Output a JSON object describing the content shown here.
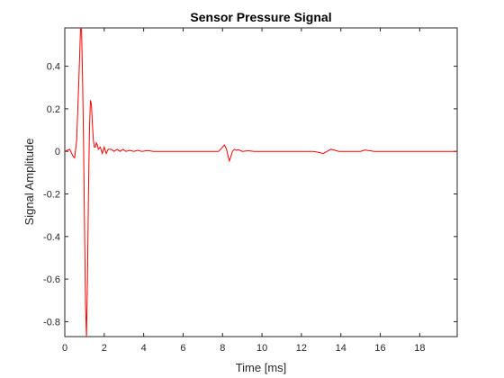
{
  "chart_data": {
    "type": "line",
    "title": "Sensor Pressure Signal",
    "xlabel": "Time [ms]",
    "ylabel": "Signal Amplitude",
    "xlim": [
      0,
      19.9
    ],
    "ylim": [
      -0.87,
      0.58
    ],
    "xticks": [
      0,
      2,
      4,
      6,
      8,
      10,
      12,
      14,
      16,
      18
    ],
    "xtick_labels": [
      "0",
      "2",
      "4",
      "6",
      "8",
      "10",
      "12",
      "14",
      "16",
      "18"
    ],
    "yticks": [
      -0.8,
      -0.6,
      -0.4,
      -0.2,
      0,
      0.2,
      0.4
    ],
    "ytick_labels": [
      "-0.8",
      "-0.6",
      "-0.4",
      "-0.2",
      "0",
      "0.2",
      "0.4"
    ],
    "grid": false,
    "line_color": "#ff0000",
    "series": [
      {
        "x": [
          0,
          0.25,
          0.4,
          0.5,
          0.6,
          0.7,
          0.8,
          0.85,
          0.9,
          0.95,
          1.0,
          1.05,
          1.1,
          1.15,
          1.2,
          1.25,
          1.3,
          1.35,
          1.4,
          1.45,
          1.5,
          1.55,
          1.6,
          1.65,
          1.7,
          1.8,
          1.9,
          2.0,
          2.1,
          2.2,
          2.35,
          2.5,
          2.65,
          2.8,
          2.95,
          3.1,
          3.3,
          3.5,
          3.7,
          3.9,
          4.2,
          4.5,
          5.0,
          6.0,
          7.0,
          7.8,
          8.0,
          8.1,
          8.2,
          8.3,
          8.35,
          8.4,
          8.5,
          8.6,
          8.7,
          8.8,
          9.0,
          9.3,
          9.6,
          10.0,
          11.0,
          12.0,
          12.6,
          12.9,
          13.1,
          13.3,
          13.5,
          13.7,
          13.9,
          14.2,
          14.6,
          15.0,
          15.2,
          15.4,
          15.7,
          16.5,
          18.0,
          19.9
        ],
        "y": [
          0,
          0.01,
          -0.02,
          -0.03,
          0.05,
          0.3,
          0.58,
          0.57,
          0.35,
          0.05,
          -0.35,
          -0.72,
          -0.87,
          -0.6,
          -0.2,
          0.1,
          0.24,
          0.22,
          0.13,
          0.05,
          0.02,
          0.02,
          0.04,
          0.03,
          0.01,
          0.02,
          -0.01,
          0.02,
          -0.01,
          0.01,
          0.01,
          0,
          0.01,
          0,
          0.01,
          0,
          0.005,
          0,
          0.005,
          0,
          0.004,
          0,
          0,
          0,
          0,
          0,
          0.02,
          0.03,
          0.01,
          -0.03,
          -0.045,
          -0.03,
          0,
          0.01,
          0.005,
          0.008,
          0,
          0.003,
          0,
          0,
          0,
          0,
          0,
          -0.005,
          -0.01,
          0,
          0.01,
          0.005,
          0,
          0,
          0,
          0,
          0.006,
          0.004,
          0,
          0,
          0,
          0
        ]
      }
    ]
  }
}
